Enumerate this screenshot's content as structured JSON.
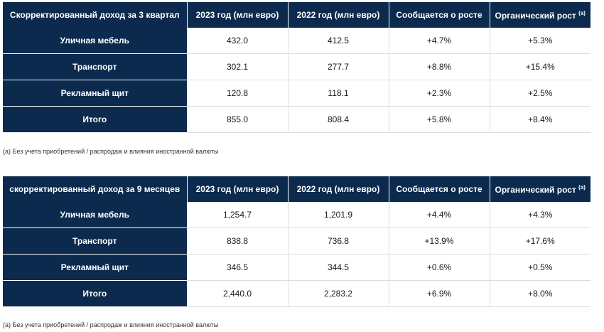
{
  "q3": {
    "headers": [
      "Скорректированный доход за 3 квартал",
      "2023 год (млн евро)",
      "2022 год (млн евро)",
      "Сообщается о росте",
      "Органический рост"
    ],
    "footnote_marker": "(a)",
    "rows": [
      {
        "label": "Уличная мебель",
        "y2023": "432.0",
        "y2022": "412.5",
        "reported": "+4.7%",
        "organic": "+5.3%"
      },
      {
        "label": "Транспорт",
        "y2023": "302.1",
        "y2022": "277.7",
        "reported": "+8.8%",
        "organic": "+15.4%"
      },
      {
        "label": "Рекламный щит",
        "y2023": "120.8",
        "y2022": "118.1",
        "reported": "+2.3%",
        "organic": "+2.5%"
      },
      {
        "label": "Итого",
        "y2023": "855.0",
        "y2022": "808.4",
        "reported": "+5.8%",
        "organic": "+8.4%"
      }
    ],
    "note": "(a) Без учета приобретений / распродаж и влияния иностранной валюты"
  },
  "m9": {
    "headers": [
      "скорректированный доход за 9 месяцев",
      "2023 год (млн евро)",
      "2022 год (млн евро)",
      "Сообщается о росте",
      "Органический рост"
    ],
    "footnote_marker": "(a)",
    "rows": [
      {
        "label": "Уличная мебель",
        "y2023": "1,254.7",
        "y2022": "1,201.9",
        "reported": "+4.4%",
        "organic": "+4.3%"
      },
      {
        "label": "Транспорт",
        "y2023": "838.8",
        "y2022": "736.8",
        "reported": "+13.9%",
        "organic": "+17.6%"
      },
      {
        "label": "Рекламный щит",
        "y2023": "346.5",
        "y2022": "344.5",
        "reported": "+0.6%",
        "organic": "+0.5%"
      },
      {
        "label": "Итого",
        "y2023": "2,440.0",
        "y2022": "2,283.2",
        "reported": "+6.9%",
        "organic": "+8.0%"
      }
    ],
    "note": "(a) Без учета приобретений / распродаж и влияния иностранной валюты"
  },
  "colors": {
    "header_bg": "#0b2a4d",
    "header_text": "#ffffff",
    "cell_border": "#d9dde3"
  }
}
